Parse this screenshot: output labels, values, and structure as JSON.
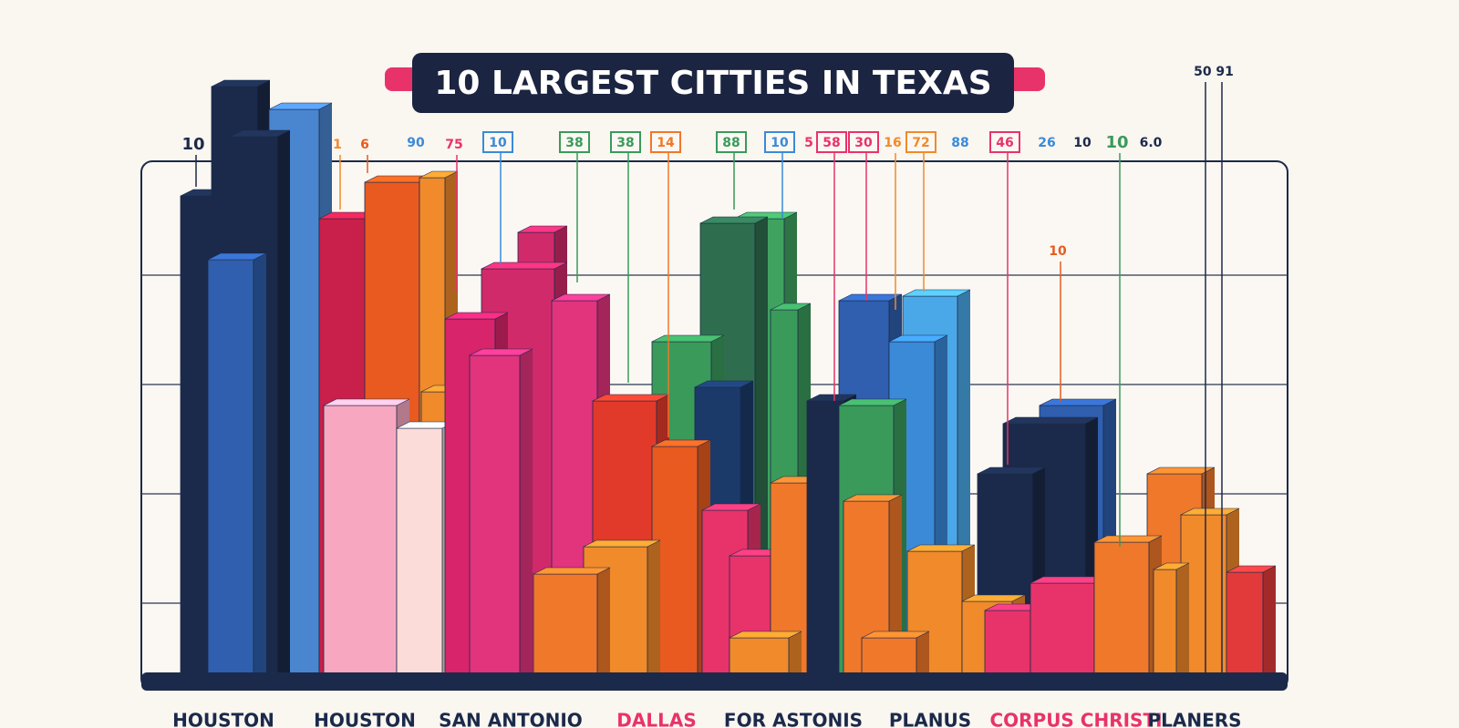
{
  "title": "10 LARGEST CITTIES  IN TEXAS",
  "callouts": [
    "10",
    "1",
    "6",
    "90",
    "75",
    "10",
    "38",
    "38",
    "14",
    "88",
    "10",
    "5",
    "58",
    "30",
    "16",
    "72",
    "88",
    "46",
    "26",
    "10",
    "10",
    "6.0",
    "50 91",
    "10"
  ],
  "city_labels": [
    "HOUSTON",
    "HOUSTON",
    "SAN ANTONIO",
    "DALLAS",
    "FOR ASTONIS",
    "PLANUS",
    "CORPUS CHRISTI",
    "PLANERS"
  ]
}
